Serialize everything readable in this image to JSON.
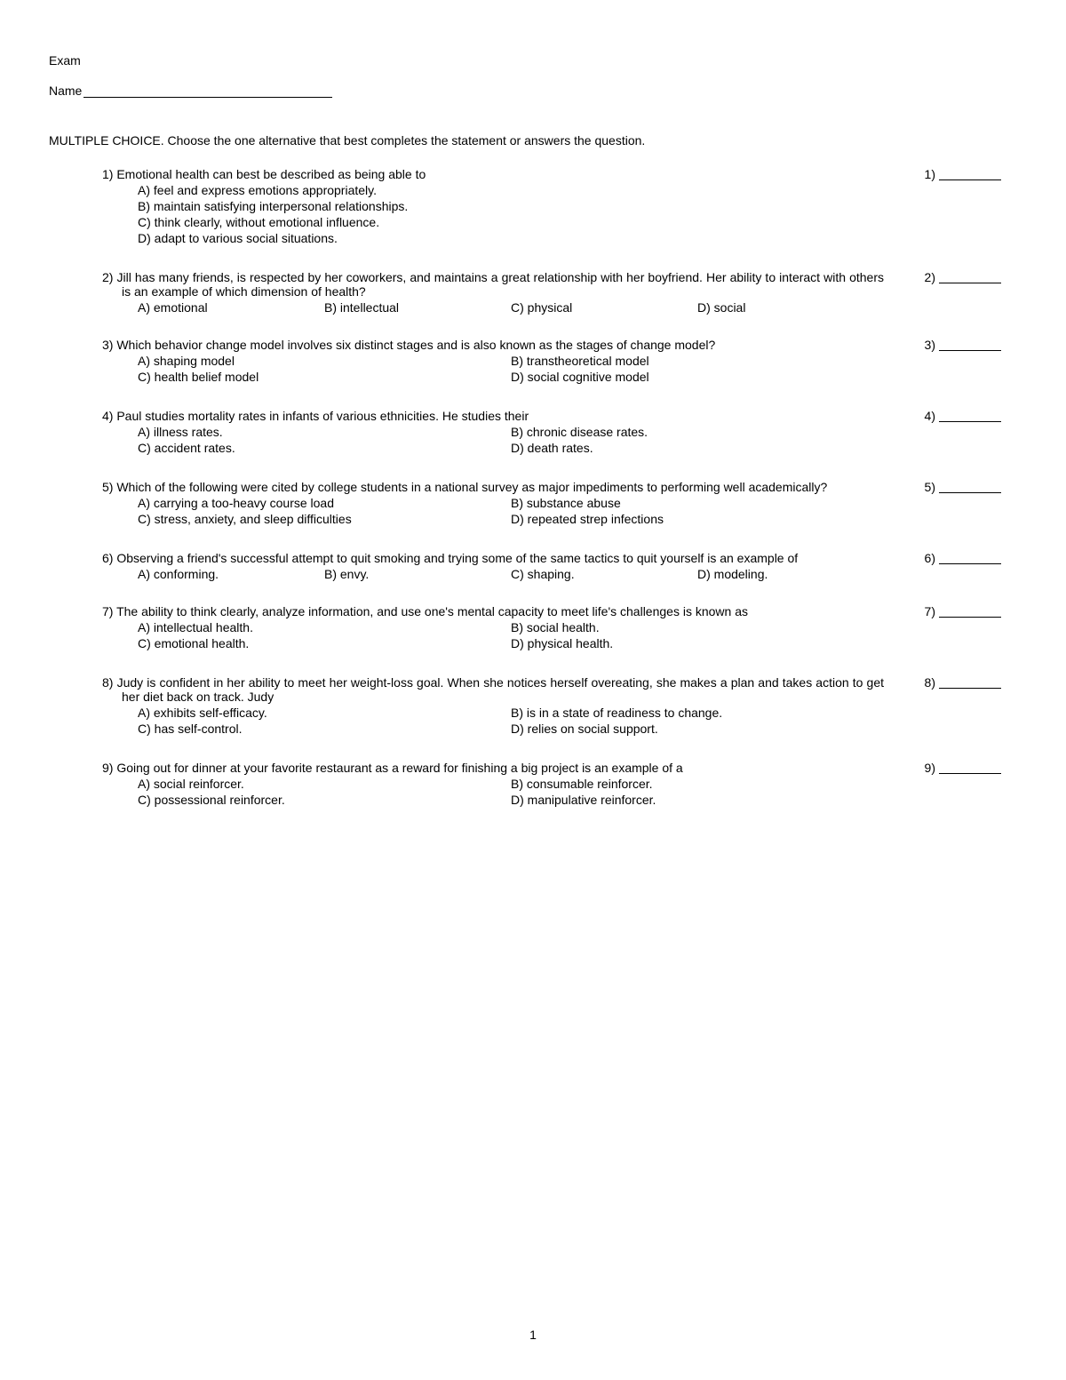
{
  "header": {
    "title": "Exam",
    "name_label": "Name"
  },
  "instructions": "MULTIPLE CHOICE.  Choose the one alternative that best completes the statement or answers the question.",
  "page_number": "1",
  "questions": [
    {
      "num": "1)",
      "stem": "Emotional health can best be described as being able to",
      "layout": "stack",
      "choices": [
        "A) feel and express emotions appropriately.",
        "B) maintain satisfying interpersonal relationships.",
        "C) think clearly, without emotional influence.",
        "D) adapt to various social situations."
      ],
      "ans_num": "1)"
    },
    {
      "num": "2)",
      "stem": "Jill has many friends, is respected by her coworkers, and maintains a great relationship with her boyfriend. Her ability to interact with others is an example of which dimension of health?",
      "layout": "row4",
      "choices": [
        "A) emotional",
        "B) intellectual",
        "C) physical",
        "D) social"
      ],
      "ans_num": "2)"
    },
    {
      "num": "3)",
      "stem": "Which behavior change model involves six distinct stages and is also known as the stages of change model?",
      "layout": "grid2x2",
      "choices": [
        "A) shaping model",
        "B) transtheoretical model",
        "C) health belief model",
        "D) social cognitive model"
      ],
      "ans_num": "3)"
    },
    {
      "num": "4)",
      "stem": "Paul studies mortality rates in infants of various ethnicities. He studies their",
      "layout": "grid2x2",
      "choices": [
        "A) illness rates.",
        "B) chronic disease rates.",
        "C) accident rates.",
        "D) death rates."
      ],
      "ans_num": "4)"
    },
    {
      "num": "5)",
      "stem": "Which of the following were cited by college students in a national survey as major impediments to performing well academically?",
      "layout": "grid2x2",
      "choices": [
        "A) carrying a too-heavy course load",
        "B) substance abuse",
        "C) stress, anxiety, and sleep difficulties",
        "D) repeated strep infections"
      ],
      "ans_num": "5)"
    },
    {
      "num": "6)",
      "stem": "Observing a friend's successful attempt to quit smoking and trying some of the same tactics to quit yourself is an example of",
      "layout": "row4",
      "choices": [
        "A) conforming.",
        "B) envy.",
        "C) shaping.",
        "D) modeling."
      ],
      "ans_num": "6)"
    },
    {
      "num": "7)",
      "stem": "The ability to think clearly, analyze information, and use one's mental capacity to meet life's challenges is known as",
      "layout": "grid2x2",
      "choices": [
        "A) intellectual health.",
        "B) social health.",
        "C) emotional health.",
        "D) physical health."
      ],
      "ans_num": "7)"
    },
    {
      "num": "8)",
      "stem": "Judy is confident in her ability to meet her weight-loss goal. When she notices herself overeating, she makes a plan and takes action to get her diet back on track. Judy",
      "layout": "grid2x2",
      "choices": [
        "A) exhibits self-efficacy.",
        "B) is in a state of readiness to change.",
        "C) has self-control.",
        "D) relies on social support."
      ],
      "ans_num": "8)"
    },
    {
      "num": "9)",
      "stem": "Going out for dinner at your favorite restaurant as a reward for finishing a big project is an example of a",
      "layout": "grid2x2",
      "choices": [
        "A) social reinforcer.",
        "B) consumable reinforcer.",
        "C) possessional reinforcer.",
        "D) manipulative reinforcer."
      ],
      "ans_num": "9)"
    }
  ]
}
